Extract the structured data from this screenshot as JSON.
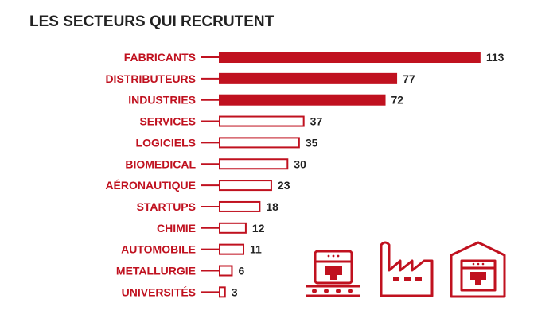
{
  "chart_data": {
    "type": "bar",
    "orientation": "horizontal",
    "title": "LES SECTEURS QUI RECRUTENT",
    "categories": [
      "FABRICANTS",
      "DISTRIBUTEURS",
      "INDUSTRIES",
      "SERVICES",
      "LOGICIELS",
      "BIOMEDICAL",
      "AÉRONAUTIQUE",
      "STARTUPS",
      "CHIMIE",
      "AUTOMOBILE",
      "METALLURGIE",
      "UNIVERSITÉS"
    ],
    "values": [
      113,
      77,
      72,
      37,
      35,
      30,
      23,
      18,
      12,
      11,
      6,
      3
    ],
    "filled": [
      true,
      true,
      true,
      false,
      false,
      false,
      false,
      false,
      false,
      false,
      false,
      false
    ],
    "xlabel": "",
    "ylabel": "",
    "grid": false,
    "legend": "none"
  },
  "colors": {
    "accent": "#c0111f",
    "text": "#222222"
  },
  "icons": [
    "3d-printer-conveyor-icon",
    "factory-icon",
    "warehouse-printer-icon"
  ]
}
